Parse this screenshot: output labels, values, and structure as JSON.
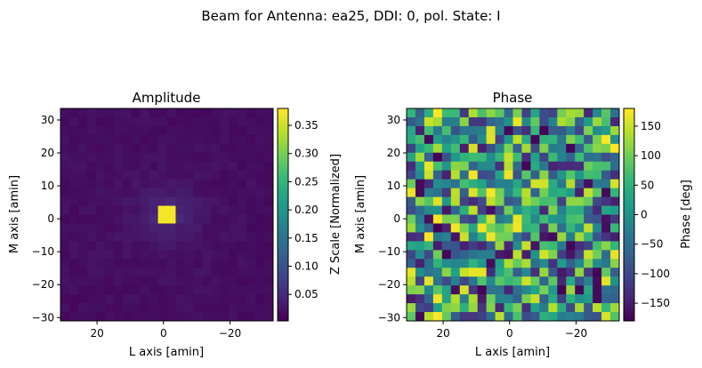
{
  "figure_title": "Beam for Antenna: ea25, DDI: 0, pol. State: I",
  "colors": {
    "viridis": [
      "#440154",
      "#482878",
      "#3e4989",
      "#31688e",
      "#26828e",
      "#1f9e89",
      "#35b779",
      "#6ece58",
      "#b5de2b",
      "#fde725"
    ]
  },
  "chart_data": [
    {
      "type": "heatmap",
      "title": "Amplitude",
      "xlabel": "L axis [amin]",
      "ylabel": "M axis [amin]",
      "xlim": [
        31,
        -33
      ],
      "ylim": [
        -31,
        33.5
      ],
      "x_ticks": [
        20,
        0,
        -20
      ],
      "x_tick_labels": [
        "20",
        "0",
        "−20"
      ],
      "y_ticks": [
        30,
        20,
        10,
        0,
        -10,
        -20,
        -30
      ],
      "y_tick_labels": [
        "30",
        "20",
        "10",
        "0",
        "−10",
        "−20",
        "−30"
      ],
      "grid_shape": [
        24,
        24
      ],
      "peak_cell": [
        11,
        11
      ],
      "peak_value": 0.375,
      "background_value": 0.01,
      "colorbar": {
        "label": "Z Scale [Normalized]",
        "range": [
          0.003,
          0.38
        ],
        "ticks": [
          0.35,
          0.3,
          0.25,
          0.2,
          0.15,
          0.1,
          0.05
        ],
        "tick_labels": [
          "0.35",
          "0.30",
          "0.25",
          "0.20",
          "0.15",
          "0.10",
          "0.05"
        ],
        "colormap": "viridis"
      }
    },
    {
      "type": "heatmap",
      "title": "Phase",
      "xlabel": "L axis [amin]",
      "ylabel": "M axis [amin]",
      "xlim": [
        31,
        -33
      ],
      "ylim": [
        -31,
        33.5
      ],
      "x_ticks": [
        20,
        0,
        -20
      ],
      "x_tick_labels": [
        "20",
        "0",
        "−20"
      ],
      "y_ticks": [
        30,
        20,
        10,
        0,
        -10,
        -20,
        -30
      ],
      "y_tick_labels": [
        "30",
        "20",
        "10",
        "0",
        "−10",
        "−20",
        "−30"
      ],
      "grid_shape": [
        24,
        24
      ],
      "colorbar": {
        "label": "Phase [deg]",
        "range": [
          -180,
          180
        ],
        "ticks": [
          150,
          100,
          50,
          0,
          -50,
          -100,
          -150
        ],
        "tick_labels": [
          "150",
          "100",
          "50",
          "0",
          "−50",
          "−100",
          "−150"
        ],
        "colormap": "viridis"
      }
    }
  ]
}
